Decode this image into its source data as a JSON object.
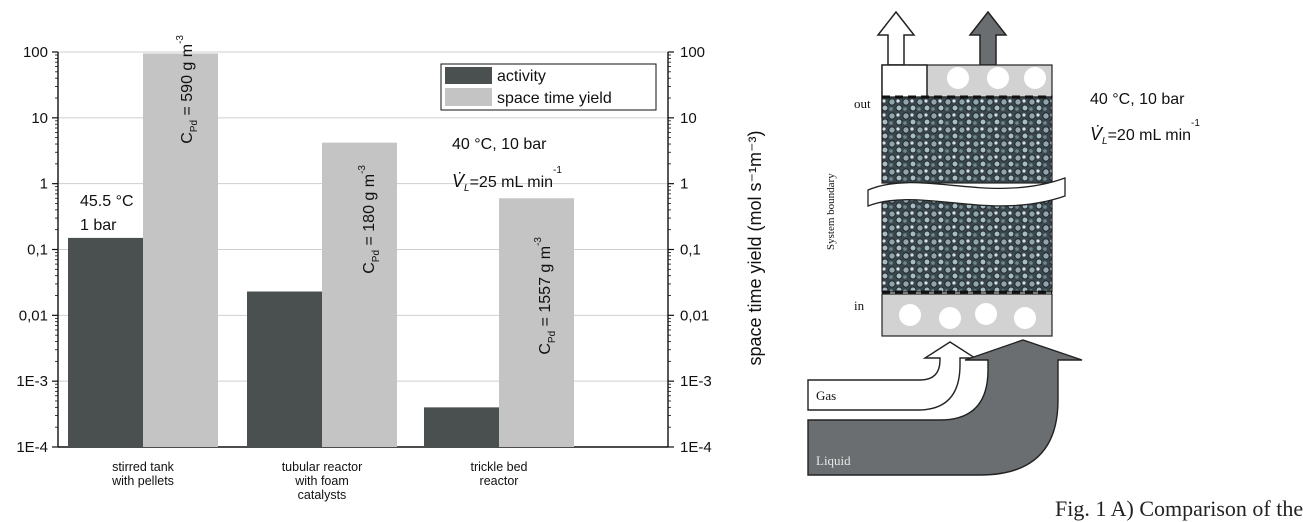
{
  "chart_data": {
    "type": "bar",
    "scale": "log",
    "ylim": [
      0.0001,
      100
    ],
    "left_ticks": [
      "1E-4",
      "1E-3",
      "0,01",
      "0,1",
      "1",
      "10",
      "100"
    ],
    "right_ticks": [
      "1E-4",
      "1E-3",
      "0,01",
      "0,1",
      "1",
      "10",
      "100"
    ],
    "right_ylabel": "space time yield (mol s⁻¹m⁻³)",
    "categories": [
      [
        "stirred tank",
        "with pellets"
      ],
      [
        "tubular reactor",
        "with foam",
        "catalysts"
      ],
      [
        "trickle bed",
        "reactor"
      ]
    ],
    "series": [
      {
        "name": "activity",
        "color": "#4a4f50",
        "values": [
          0.15,
          0.023,
          0.0004
        ]
      },
      {
        "name": "space time yield",
        "color": "#c4c4c4",
        "values": [
          95,
          4.2,
          0.6
        ]
      }
    ],
    "bar_labels": [
      {
        "sym": "C",
        "sub": "Pd",
        "rest": " = 590 g m",
        "sup": "-3"
      },
      {
        "sym": "C",
        "sub": "Pd",
        "rest": " = 180 g m",
        "sup": "-3"
      },
      {
        "sym": "C",
        "sub": "Pd",
        "rest": " = 1557 g m",
        "sup": "-3"
      }
    ],
    "annotations": {
      "stirred_temp": "45.5 °C",
      "stirred_press": "1 bar",
      "conditions": "40 °C, 10 bar",
      "flow_sym": "V̇",
      "flow_sub": "L",
      "flow_value": "=25 mL min",
      "flow_sup": "-1"
    },
    "legend_position": "top-right"
  },
  "diagram": {
    "out_label": "out",
    "in_label": "in",
    "boundary_label": "System boundary",
    "gas_label": "Gas",
    "liquid_label": "Liquid",
    "conditions": "40 °C, 10 bar",
    "flow_sym": "V̇",
    "flow_sub": "L",
    "flow_value": "=20 mL min",
    "flow_sup": "-1",
    "colors": {
      "gas": "#ffffff",
      "liquid": "#6a6e70",
      "bed": "#3c4a50",
      "plate": "#d0d0d0"
    }
  },
  "caption": "Fig. 1 A) Comparison of the"
}
